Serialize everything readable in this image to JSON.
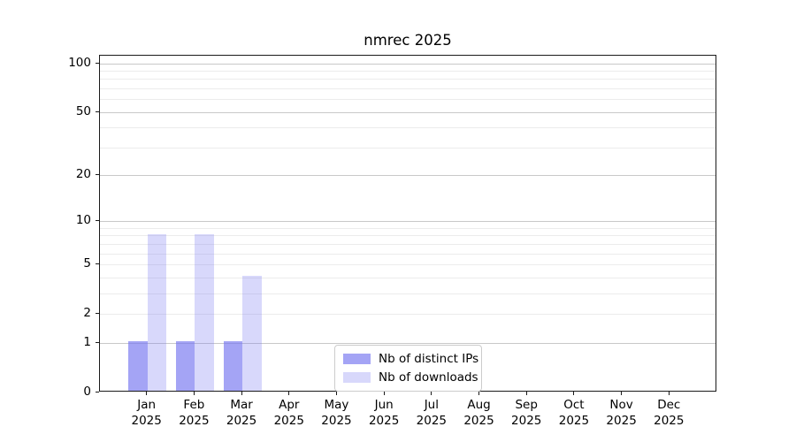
{
  "figure": {
    "background": "#ffffff"
  },
  "chart_data": {
    "type": "bar",
    "title": "nmrec 2025",
    "xlabel": "",
    "ylabel": "",
    "categories": [
      "Jan 2025",
      "Feb 2025",
      "Mar 2025",
      "Apr 2025",
      "May 2025",
      "Jun 2025",
      "Jul 2025",
      "Aug 2025",
      "Sep 2025",
      "Oct 2025",
      "Nov 2025",
      "Dec 2025"
    ],
    "series": [
      {
        "name": "Nb of distinct IPs",
        "color": "rgba(120,120,240,0.67)",
        "values": [
          1,
          1,
          1,
          0,
          0,
          0,
          0,
          0,
          0,
          0,
          0,
          0
        ]
      },
      {
        "name": "Nb of downloads",
        "color": "rgba(120,120,240,0.285)",
        "values": [
          8,
          8,
          4,
          0,
          0,
          0,
          0,
          0,
          0,
          0,
          0,
          0
        ]
      }
    ],
    "yscale": "log1p",
    "yticks": [
      0,
      1,
      2,
      5,
      10,
      20,
      50,
      100
    ],
    "ylim": [
      0,
      112
    ],
    "grid": {
      "major_values": [
        1,
        10,
        20,
        50,
        100
      ],
      "minor_values": [
        2,
        3,
        4,
        5,
        6,
        7,
        8,
        9,
        30,
        40,
        60,
        70,
        80,
        90
      ],
      "major_color": "#c9c9c9",
      "minor_color": "#ececec"
    },
    "legend": {
      "position": "lower center"
    }
  }
}
